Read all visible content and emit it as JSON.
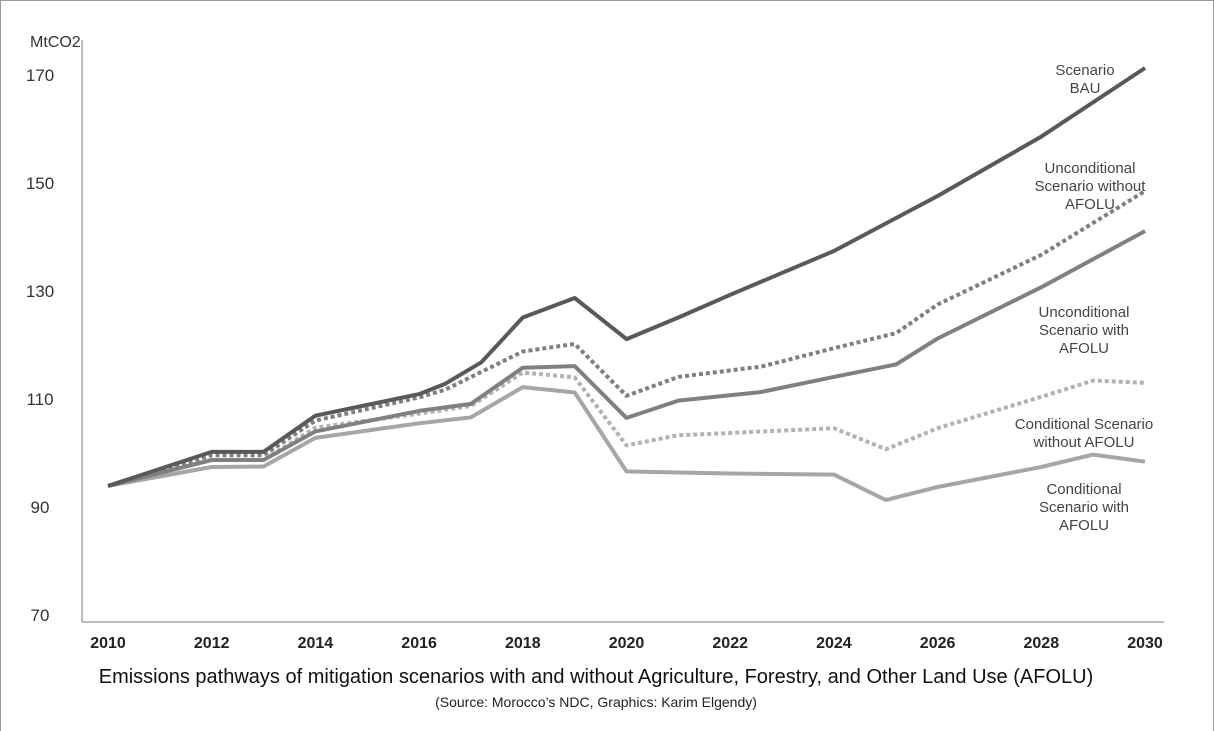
{
  "chart_data": {
    "type": "line",
    "title": "Emissions pathways of mitigation scenarios with and without Agriculture, Forestry, and Other Land Use (AFOLU)",
    "subtitle": "(Source: Morocco’s NDC, Graphics: Karim Elgendy)",
    "ylabel": "MtCO2",
    "xlabel": "",
    "xlim": [
      2010,
      2030
    ],
    "ylim": [
      70,
      175
    ],
    "x_ticks": [
      "2010",
      "2012",
      "2014",
      "2016",
      "2018",
      "2020",
      "2022",
      "2024",
      "2026",
      "2028",
      "2030"
    ],
    "y_ticks": [
      "70",
      "90",
      "110",
      "130",
      "150",
      "170"
    ],
    "grid": false,
    "series": [
      {
        "name": "Scenario BAU",
        "label_lines": [
          "Scenario",
          "BAU"
        ],
        "color": "#595959",
        "dash": "solid",
        "points": [
          [
            2010,
            93.9
          ],
          [
            2012,
            100.2
          ],
          [
            2013,
            100.2
          ],
          [
            2014,
            106.9
          ],
          [
            2016,
            110.9
          ],
          [
            2016.5,
            112.8
          ],
          [
            2017.2,
            116.8
          ],
          [
            2018,
            125.1
          ],
          [
            2019,
            128.7
          ],
          [
            2020,
            121.1
          ],
          [
            2021,
            125.1
          ],
          [
            2022,
            129.3
          ],
          [
            2024,
            137.4
          ],
          [
            2026,
            147.6
          ],
          [
            2028,
            158.6
          ],
          [
            2030,
            171.3
          ]
        ]
      },
      {
        "name": "Unconditional Scenario without AFOLU",
        "label_lines": [
          "Unconditional",
          "Scenario without",
          "AFOLU"
        ],
        "color": "#7f7f7f",
        "dash": "dotted",
        "points": [
          [
            2010,
            93.9
          ],
          [
            2012,
            99.6
          ],
          [
            2013,
            99.6
          ],
          [
            2014,
            106.0
          ],
          [
            2016,
            110.3
          ],
          [
            2016.5,
            111.7
          ],
          [
            2018,
            118.8
          ],
          [
            2019,
            120.2
          ],
          [
            2020,
            110.6
          ],
          [
            2021,
            114.1
          ],
          [
            2022,
            115.3
          ],
          [
            2022.6,
            116.0
          ],
          [
            2024,
            119.4
          ],
          [
            2025.2,
            122.2
          ],
          [
            2026,
            127.5
          ],
          [
            2028,
            136.7
          ],
          [
            2030,
            148.5
          ]
        ]
      },
      {
        "name": "Unconditional Scenario with AFOLU",
        "label_lines": [
          "Unconditional",
          "Scenario with",
          "AFOLU"
        ],
        "color": "#808080",
        "dash": "solid",
        "points": [
          [
            2010,
            93.9
          ],
          [
            2012,
            98.7
          ],
          [
            2013,
            98.7
          ],
          [
            2014,
            104.0
          ],
          [
            2016,
            107.8
          ],
          [
            2017,
            109.1
          ],
          [
            2018,
            115.8
          ],
          [
            2019,
            116.1
          ],
          [
            2020,
            106.5
          ],
          [
            2021,
            109.7
          ],
          [
            2022.6,
            111.3
          ],
          [
            2024,
            114.1
          ],
          [
            2025.2,
            116.4
          ],
          [
            2026,
            121.2
          ],
          [
            2028,
            130.7
          ],
          [
            2030,
            141.1
          ]
        ]
      },
      {
        "name": "Conditional Scenario without AFOLU",
        "label_lines": [
          "Conditional Scenario",
          "without AFOLU"
        ],
        "color": "#b2b2b2",
        "dash": "dotted",
        "points": [
          [
            2010,
            93.9
          ],
          [
            2012,
            98.7
          ],
          [
            2013,
            98.7
          ],
          [
            2014,
            104.7
          ],
          [
            2016,
            107.3
          ],
          [
            2017,
            108.7
          ],
          [
            2018,
            114.9
          ],
          [
            2019,
            114.0
          ],
          [
            2020,
            101.4
          ],
          [
            2021,
            103.3
          ],
          [
            2022,
            103.7
          ],
          [
            2024,
            104.6
          ],
          [
            2025,
            100.7
          ],
          [
            2026,
            104.6
          ],
          [
            2028,
            110.4
          ],
          [
            2029,
            113.4
          ],
          [
            2030,
            113.0
          ]
        ]
      },
      {
        "name": "Conditional Scenario with AFOLU",
        "label_lines": [
          "Conditional",
          "Scenario with",
          "AFOLU"
        ],
        "color": "#a6a6a6",
        "dash": "solid",
        "points": [
          [
            2010,
            93.9
          ],
          [
            2012,
            97.4
          ],
          [
            2013,
            97.5
          ],
          [
            2014,
            102.8
          ],
          [
            2016,
            105.5
          ],
          [
            2017,
            106.6
          ],
          [
            2018,
            112.2
          ],
          [
            2019,
            111.2
          ],
          [
            2020,
            96.6
          ],
          [
            2022,
            96.2
          ],
          [
            2024,
            96.0
          ],
          [
            2025,
            91.3
          ],
          [
            2026,
            93.7
          ],
          [
            2028,
            97.4
          ],
          [
            2029,
            99.7
          ],
          [
            2030,
            98.4
          ]
        ]
      }
    ]
  }
}
